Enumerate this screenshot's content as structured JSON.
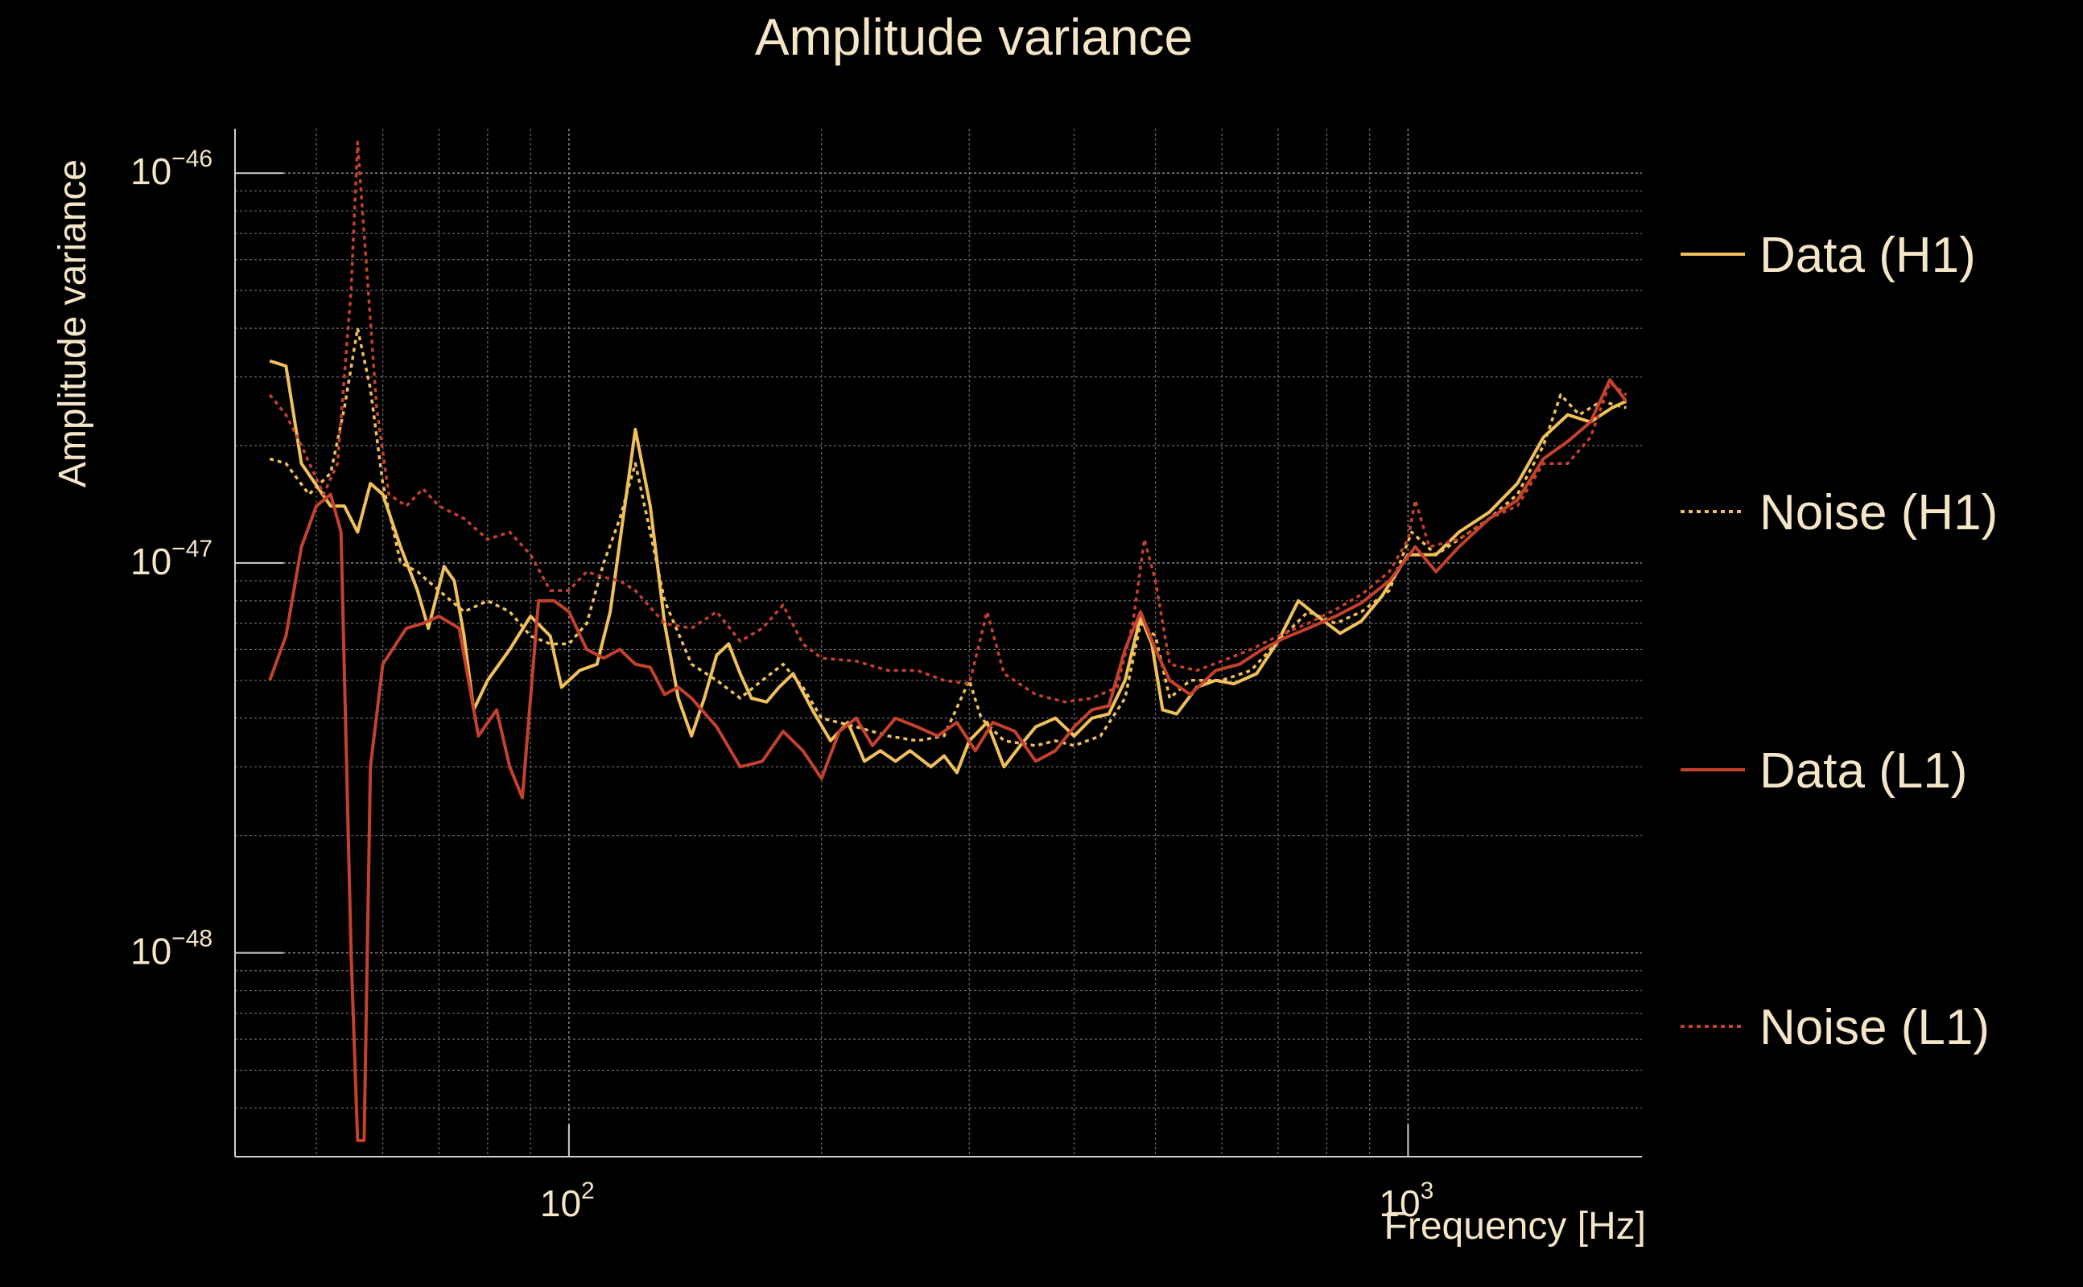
{
  "chart_data": {
    "type": "line",
    "title": "Amplitude variance",
    "xlabel": "Frequency [Hz]",
    "ylabel": "Amplitude variance",
    "xscale": "log",
    "yscale": "log",
    "xlim": [
      40,
      1900
    ],
    "ylim": [
      3e-49,
      1.3e-46
    ],
    "grid": true,
    "legend_position": "right",
    "x_ticks": [
      {
        "base": "10",
        "exp": "2"
      },
      {
        "base": "10",
        "exp": "3"
      }
    ],
    "y_ticks": [
      {
        "base": "10",
        "exp": "−46"
      },
      {
        "base": "10",
        "exp": "−47"
      },
      {
        "base": "10",
        "exp": "−48"
      }
    ],
    "series": [
      {
        "name": "Data (H1)",
        "color": "#f0c05a",
        "style": "solid",
        "points": [
          [
            44,
            3.3e-47
          ],
          [
            46,
            3.2e-47
          ],
          [
            48,
            1.8e-47
          ],
          [
            52,
            1.4e-47
          ],
          [
            54,
            1.4e-47
          ],
          [
            56,
            1.2e-47
          ],
          [
            58,
            1.6e-47
          ],
          [
            60,
            1.5e-47
          ],
          [
            63,
            1.1e-47
          ],
          [
            66,
            8.5e-48
          ],
          [
            68,
            6.8e-48
          ],
          [
            71,
            9.8e-48
          ],
          [
            73,
            9e-48
          ],
          [
            75,
            6.5e-48
          ],
          [
            77,
            4.2e-48
          ],
          [
            80,
            5e-48
          ],
          [
            85,
            6e-48
          ],
          [
            90,
            7.3e-48
          ],
          [
            95,
            6.5e-48
          ],
          [
            98,
            4.8e-48
          ],
          [
            103,
            5.3e-48
          ],
          [
            108,
            5.5e-48
          ],
          [
            112,
            7.5e-48
          ],
          [
            116,
            1.3e-47
          ],
          [
            120,
            2.2e-47
          ],
          [
            125,
            1.4e-47
          ],
          [
            130,
            7e-48
          ],
          [
            135,
            4.5e-48
          ],
          [
            140,
            3.6e-48
          ],
          [
            145,
            4.5e-48
          ],
          [
            150,
            5.8e-48
          ],
          [
            155,
            6.2e-48
          ],
          [
            160,
            5.2e-48
          ],
          [
            165,
            4.5e-48
          ],
          [
            172,
            4.4e-48
          ],
          [
            178,
            4.8e-48
          ],
          [
            185,
            5.2e-48
          ],
          [
            195,
            4.2e-48
          ],
          [
            205,
            3.5e-48
          ],
          [
            215,
            3.9e-48
          ],
          [
            225,
            3.1e-48
          ],
          [
            235,
            3.3e-48
          ],
          [
            245,
            3.1e-48
          ],
          [
            255,
            3.3e-48
          ],
          [
            270,
            3e-48
          ],
          [
            280,
            3.2e-48
          ],
          [
            290,
            2.9e-48
          ],
          [
            300,
            3.5e-48
          ],
          [
            315,
            3.9e-48
          ],
          [
            330,
            3e-48
          ],
          [
            345,
            3.4e-48
          ],
          [
            360,
            3.8e-48
          ],
          [
            380,
            4e-48
          ],
          [
            400,
            3.6e-48
          ],
          [
            420,
            4e-48
          ],
          [
            440,
            4.1e-48
          ],
          [
            460,
            5e-48
          ],
          [
            480,
            7.3e-48
          ],
          [
            495,
            6.2e-48
          ],
          [
            510,
            4.2e-48
          ],
          [
            530,
            4.1e-48
          ],
          [
            560,
            4.8e-48
          ],
          [
            590,
            5e-48
          ],
          [
            620,
            4.9e-48
          ],
          [
            660,
            5.2e-48
          ],
          [
            700,
            6.3e-48
          ],
          [
            740,
            8e-48
          ],
          [
            780,
            7.3e-48
          ],
          [
            830,
            6.6e-48
          ],
          [
            880,
            7.1e-48
          ],
          [
            930,
            8.2e-48
          ],
          [
            1000,
            1.05e-47
          ],
          [
            1080,
            1.05e-47
          ],
          [
            1150,
            1.2e-47
          ],
          [
            1250,
            1.35e-47
          ],
          [
            1350,
            1.6e-47
          ],
          [
            1450,
            2.1e-47
          ],
          [
            1550,
            2.4e-47
          ],
          [
            1650,
            2.3e-47
          ],
          [
            1750,
            2.5e-47
          ],
          [
            1820,
            2.6e-47
          ]
        ]
      },
      {
        "name": "Noise (H1)",
        "color": "#f0c05a",
        "style": "dotted",
        "points": [
          [
            44,
            1.85e-47
          ],
          [
            46,
            1.8e-47
          ],
          [
            49,
            1.5e-47
          ],
          [
            52,
            1.7e-47
          ],
          [
            54,
            2.5e-47
          ],
          [
            56,
            4e-47
          ],
          [
            58,
            2.8e-47
          ],
          [
            60,
            1.6e-47
          ],
          [
            63,
            1e-47
          ],
          [
            66,
            9.5e-48
          ],
          [
            70,
            8.5e-48
          ],
          [
            75,
            7.5e-48
          ],
          [
            80,
            8e-48
          ],
          [
            85,
            7.5e-48
          ],
          [
            90,
            6.5e-48
          ],
          [
            95,
            6.2e-48
          ],
          [
            100,
            6.2e-48
          ],
          [
            105,
            7e-48
          ],
          [
            110,
            1e-47
          ],
          [
            115,
            1.3e-47
          ],
          [
            120,
            1.8e-47
          ],
          [
            125,
            1.2e-47
          ],
          [
            130,
            8e-48
          ],
          [
            140,
            5.5e-48
          ],
          [
            150,
            5e-48
          ],
          [
            160,
            4.5e-48
          ],
          [
            170,
            5e-48
          ],
          [
            180,
            5.5e-48
          ],
          [
            190,
            4.8e-48
          ],
          [
            200,
            4e-48
          ],
          [
            220,
            3.8e-48
          ],
          [
            240,
            3.6e-48
          ],
          [
            260,
            3.5e-48
          ],
          [
            280,
            3.6e-48
          ],
          [
            300,
            5e-48
          ],
          [
            310,
            4e-48
          ],
          [
            330,
            3.5e-48
          ],
          [
            360,
            3.4e-48
          ],
          [
            380,
            3.5e-48
          ],
          [
            400,
            3.4e-48
          ],
          [
            430,
            3.6e-48
          ],
          [
            460,
            4.5e-48
          ],
          [
            480,
            7e-48
          ],
          [
            500,
            6.5e-48
          ],
          [
            520,
            4.5e-48
          ],
          [
            550,
            5e-48
          ],
          [
            600,
            5e-48
          ],
          [
            650,
            5.3e-48
          ],
          [
            700,
            6.3e-48
          ],
          [
            760,
            7.5e-48
          ],
          [
            820,
            7e-48
          ],
          [
            880,
            7.5e-48
          ],
          [
            950,
            8.5e-48
          ],
          [
            1010,
            1.2e-47
          ],
          [
            1080,
            1.05e-47
          ],
          [
            1150,
            1.15e-47
          ],
          [
            1250,
            1.3e-47
          ],
          [
            1350,
            1.5e-47
          ],
          [
            1450,
            2e-47
          ],
          [
            1520,
            2.7e-47
          ],
          [
            1600,
            2.4e-47
          ],
          [
            1700,
            2.6e-47
          ],
          [
            1820,
            2.5e-47
          ]
        ]
      },
      {
        "name": "Data (L1)",
        "color": "#c4412d",
        "style": "solid",
        "points": [
          [
            44,
            5e-48
          ],
          [
            46,
            6.5e-48
          ],
          [
            48,
            1.1e-47
          ],
          [
            50,
            1.4e-47
          ],
          [
            52,
            1.5e-47
          ],
          [
            53.5,
            1.2e-47
          ],
          [
            55,
            1e-48
          ],
          [
            56,
            3.3e-49
          ],
          [
            57,
            3.3e-49
          ],
          [
            58,
            3e-48
          ],
          [
            60,
            5.5e-48
          ],
          [
            64,
            6.8e-48
          ],
          [
            67,
            7e-48
          ],
          [
            70,
            7.3e-48
          ],
          [
            74,
            6.8e-48
          ],
          [
            78,
            3.6e-48
          ],
          [
            82,
            4.2e-48
          ],
          [
            85,
            3e-48
          ],
          [
            88,
            2.5e-48
          ],
          [
            92,
            8e-48
          ],
          [
            96,
            8e-48
          ],
          [
            100,
            7.5e-48
          ],
          [
            105,
            6e-48
          ],
          [
            110,
            5.7e-48
          ],
          [
            115,
            6e-48
          ],
          [
            120,
            5.5e-48
          ],
          [
            125,
            5.4e-48
          ],
          [
            130,
            4.6e-48
          ],
          [
            135,
            4.8e-48
          ],
          [
            140,
            4.5e-48
          ],
          [
            150,
            3.8e-48
          ],
          [
            160,
            3e-48
          ],
          [
            170,
            3.1e-48
          ],
          [
            180,
            3.7e-48
          ],
          [
            190,
            3.3e-48
          ],
          [
            200,
            2.8e-48
          ],
          [
            210,
            3.7e-48
          ],
          [
            220,
            4e-48
          ],
          [
            230,
            3.4e-48
          ],
          [
            245,
            4e-48
          ],
          [
            260,
            3.8e-48
          ],
          [
            275,
            3.6e-48
          ],
          [
            290,
            3.9e-48
          ],
          [
            305,
            3.3e-48
          ],
          [
            320,
            3.9e-48
          ],
          [
            340,
            3.7e-48
          ],
          [
            360,
            3.1e-48
          ],
          [
            380,
            3.3e-48
          ],
          [
            400,
            3.8e-48
          ],
          [
            420,
            4.2e-48
          ],
          [
            440,
            4.3e-48
          ],
          [
            460,
            6e-48
          ],
          [
            480,
            7.5e-48
          ],
          [
            500,
            6e-48
          ],
          [
            520,
            5e-48
          ],
          [
            550,
            4.6e-48
          ],
          [
            590,
            5.3e-48
          ],
          [
            630,
            5.5e-48
          ],
          [
            670,
            6e-48
          ],
          [
            710,
            6.4e-48
          ],
          [
            760,
            6.8e-48
          ],
          [
            820,
            7.3e-48
          ],
          [
            880,
            7.9e-48
          ],
          [
            950,
            9e-48
          ],
          [
            1020,
            1.1e-47
          ],
          [
            1080,
            9.5e-48
          ],
          [
            1150,
            1.1e-47
          ],
          [
            1250,
            1.3e-47
          ],
          [
            1350,
            1.45e-47
          ],
          [
            1450,
            1.85e-47
          ],
          [
            1550,
            2.05e-47
          ],
          [
            1650,
            2.3e-47
          ],
          [
            1740,
            2.95e-47
          ],
          [
            1820,
            2.6e-47
          ]
        ]
      },
      {
        "name": "Noise (L1)",
        "color": "#c4412d",
        "style": "dotted",
        "points": [
          [
            44,
            2.7e-47
          ],
          [
            46,
            2.4e-47
          ],
          [
            48,
            2e-47
          ],
          [
            51,
            1.5e-47
          ],
          [
            53,
            1.8e-47
          ],
          [
            55,
            5e-47
          ],
          [
            56,
            1.2e-46
          ],
          [
            57,
            7e-47
          ],
          [
            59,
            2.5e-47
          ],
          [
            61,
            1.5e-47
          ],
          [
            64,
            1.4e-47
          ],
          [
            67,
            1.55e-47
          ],
          [
            70,
            1.4e-47
          ],
          [
            75,
            1.3e-47
          ],
          [
            80,
            1.15e-47
          ],
          [
            85,
            1.2e-47
          ],
          [
            90,
            1.05e-47
          ],
          [
            95,
            8.5e-48
          ],
          [
            100,
            8.5e-48
          ],
          [
            105,
            9.5e-48
          ],
          [
            110,
            9.2e-48
          ],
          [
            115,
            9e-48
          ],
          [
            120,
            8.5e-48
          ],
          [
            130,
            7e-48
          ],
          [
            140,
            6.8e-48
          ],
          [
            150,
            7.5e-48
          ],
          [
            160,
            6.3e-48
          ],
          [
            170,
            6.8e-48
          ],
          [
            180,
            7.8e-48
          ],
          [
            190,
            6.2e-48
          ],
          [
            200,
            5.7e-48
          ],
          [
            220,
            5.6e-48
          ],
          [
            240,
            5.3e-48
          ],
          [
            260,
            5.3e-48
          ],
          [
            280,
            5e-48
          ],
          [
            300,
            4.9e-48
          ],
          [
            315,
            7.5e-48
          ],
          [
            330,
            5.2e-48
          ],
          [
            360,
            4.6e-48
          ],
          [
            390,
            4.4e-48
          ],
          [
            420,
            4.5e-48
          ],
          [
            450,
            4.8e-48
          ],
          [
            470,
            7e-48
          ],
          [
            485,
            1.15e-47
          ],
          [
            500,
            9e-48
          ],
          [
            520,
            5.5e-48
          ],
          [
            560,
            5.3e-48
          ],
          [
            600,
            5.6e-48
          ],
          [
            650,
            6e-48
          ],
          [
            700,
            6.5e-48
          ],
          [
            760,
            7e-48
          ],
          [
            820,
            7.6e-48
          ],
          [
            880,
            8.3e-48
          ],
          [
            950,
            9.5e-48
          ],
          [
            1000,
            1.15e-47
          ],
          [
            1020,
            1.45e-47
          ],
          [
            1060,
            1.1e-47
          ],
          [
            1150,
            1.15e-47
          ],
          [
            1250,
            1.3e-47
          ],
          [
            1350,
            1.4e-47
          ],
          [
            1450,
            1.8e-47
          ],
          [
            1550,
            1.8e-47
          ],
          [
            1650,
            2.1e-47
          ],
          [
            1740,
            2.9e-47
          ],
          [
            1820,
            2.7e-47
          ]
        ]
      }
    ]
  }
}
